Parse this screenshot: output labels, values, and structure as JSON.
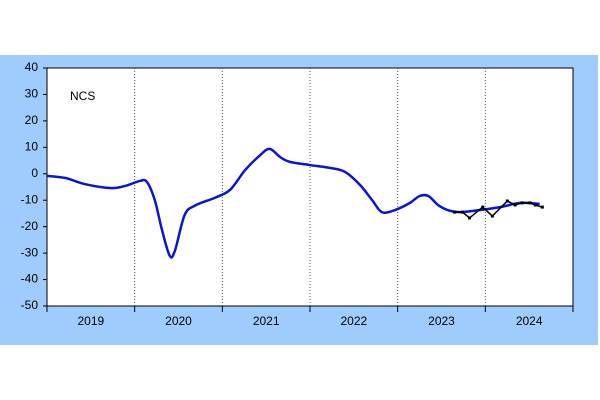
{
  "chart_data": {
    "type": "line",
    "annotation": "NCS",
    "x_scale": "year",
    "xlim": [
      2019,
      2025
    ],
    "xticks": [
      {
        "value": 2019.5,
        "label": "2019"
      },
      {
        "value": 2020.5,
        "label": "2020"
      },
      {
        "value": 2021.5,
        "label": "2021"
      },
      {
        "value": 2022.5,
        "label": "2022"
      },
      {
        "value": 2023.5,
        "label": "2023"
      },
      {
        "value": 2024.5,
        "label": "2024"
      }
    ],
    "ylim": [
      -50,
      40
    ],
    "yticks": [
      -50,
      -40,
      -30,
      -20,
      -10,
      0,
      10,
      20,
      30,
      40
    ],
    "series": [
      {
        "color": "#0a14d2",
        "smooth": true,
        "markers": false,
        "x": [
          2019.0,
          2019.21,
          2019.43,
          2019.72,
          2019.89,
          2020.06,
          2020.14,
          2020.23,
          2020.31,
          2020.4,
          2020.46,
          2020.57,
          2020.69,
          2020.92,
          2021.09,
          2021.26,
          2021.43,
          2021.54,
          2021.66,
          2021.77,
          2022.0,
          2022.23,
          2022.4,
          2022.57,
          2022.71,
          2022.82,
          2022.97,
          2023.14,
          2023.25,
          2023.35,
          2023.46,
          2023.57,
          2023.71,
          2023.94,
          2024.17,
          2024.4,
          2024.62
        ],
        "values": [
          -0.8,
          -1.6,
          -3.9,
          -5.4,
          -4.6,
          -2.7,
          -3.1,
          -10,
          -21,
          -31,
          -29,
          -15.6,
          -12,
          -9,
          -6,
          1.4,
          7,
          9.4,
          6.3,
          4.5,
          3.3,
          2.2,
          0.7,
          -4.2,
          -10,
          -14.5,
          -13.7,
          -11,
          -8.4,
          -8.4,
          -11.8,
          -13.7,
          -14.5,
          -13.7,
          -12.6,
          -11,
          -11.4
        ]
      },
      {
        "color": "#000000",
        "smooth": false,
        "markers": true,
        "x": [
          2023.65,
          2023.74,
          2023.82,
          2023.97,
          2024.08,
          2024.25,
          2024.34,
          2024.42,
          2024.51,
          2024.57,
          2024.65
        ],
        "values": [
          -14.5,
          -14.5,
          -16.7,
          -12.6,
          -16,
          -10.3,
          -11.8,
          -11,
          -11,
          -11.8,
          -12.6
        ]
      }
    ]
  }
}
